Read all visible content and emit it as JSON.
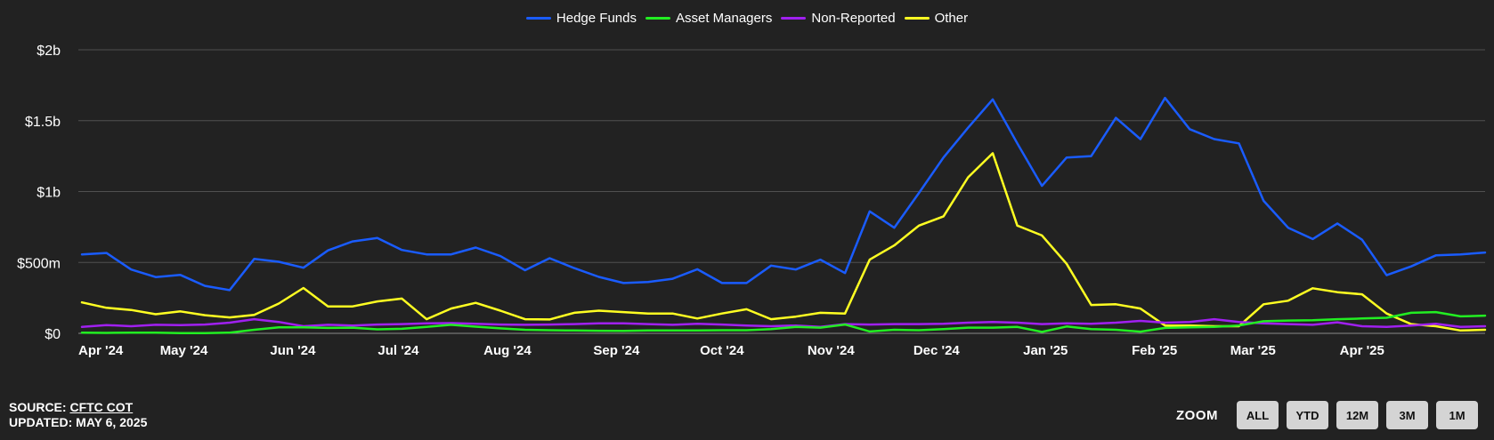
{
  "footer": {
    "source_label": "SOURCE:",
    "source_link": "CFTC COT",
    "updated": "UPDATED: MAY 6, 2025"
  },
  "zoom": {
    "label": "ZOOM",
    "buttons": [
      "ALL",
      "YTD",
      "12M",
      "3M",
      "1M"
    ]
  },
  "chart_data": {
    "type": "line",
    "title": "",
    "xlabel": "",
    "ylabel": "",
    "ylim": [
      0,
      2000000000
    ],
    "y_ticks": [
      {
        "value": 0,
        "label": "$0"
      },
      {
        "value": 500000000,
        "label": "$500m"
      },
      {
        "value": 1000000000,
        "label": "$1b"
      },
      {
        "value": 1500000000,
        "label": "$1.5b"
      },
      {
        "value": 2000000000,
        "label": "$2b"
      }
    ],
    "x_ticks": [
      {
        "date": "2024-04-01",
        "label": "Apr '24"
      },
      {
        "date": "2024-05-01",
        "label": "May '24"
      },
      {
        "date": "2024-06-01",
        "label": "Jun '24"
      },
      {
        "date": "2024-07-01",
        "label": "Jul '24"
      },
      {
        "date": "2024-08-01",
        "label": "Aug '24"
      },
      {
        "date": "2024-09-01",
        "label": "Sep '24"
      },
      {
        "date": "2024-10-01",
        "label": "Oct '24"
      },
      {
        "date": "2024-11-01",
        "label": "Nov '24"
      },
      {
        "date": "2024-12-01",
        "label": "Dec '24"
      },
      {
        "date": "2025-01-01",
        "label": "Jan '25"
      },
      {
        "date": "2025-02-01",
        "label": "Feb '25"
      },
      {
        "date": "2025-03-01",
        "label": "Mar '25"
      },
      {
        "date": "2025-04-01",
        "label": "Apr '25"
      }
    ],
    "x_range": [
      "2024-04-01",
      "2025-05-06"
    ],
    "grid": true,
    "legend_position": "top-center",
    "x": [
      "2024-04-02",
      "2024-04-09",
      "2024-04-16",
      "2024-04-23",
      "2024-04-30",
      "2024-05-07",
      "2024-05-14",
      "2024-05-21",
      "2024-05-28",
      "2024-06-04",
      "2024-06-11",
      "2024-06-18",
      "2024-06-25",
      "2024-07-02",
      "2024-07-09",
      "2024-07-16",
      "2024-07-23",
      "2024-07-30",
      "2024-08-06",
      "2024-08-13",
      "2024-08-20",
      "2024-08-27",
      "2024-09-03",
      "2024-09-10",
      "2024-09-17",
      "2024-09-24",
      "2024-10-01",
      "2024-10-08",
      "2024-10-15",
      "2024-10-22",
      "2024-10-29",
      "2024-11-05",
      "2024-11-12",
      "2024-11-19",
      "2024-11-26",
      "2024-12-03",
      "2024-12-10",
      "2024-12-17",
      "2024-12-24",
      "2024-12-31",
      "2025-01-07",
      "2025-01-14",
      "2025-01-21",
      "2025-01-28",
      "2025-02-04",
      "2025-02-11",
      "2025-02-18",
      "2025-02-25",
      "2025-03-04",
      "2025-03-11",
      "2025-03-18",
      "2025-03-25",
      "2025-04-01",
      "2025-04-08",
      "2025-04-15",
      "2025-04-22",
      "2025-04-29",
      "2025-05-06"
    ],
    "series": [
      {
        "name": "Hedge Funds",
        "color": "#1a5cff",
        "values": [
          557000000,
          567000000,
          450000000,
          397000000,
          412000000,
          335000000,
          305000000,
          525000000,
          505000000,
          463000000,
          585000000,
          648000000,
          673000000,
          588000000,
          557000000,
          557000000,
          605000000,
          545000000,
          445000000,
          530000000,
          460000000,
          398000000,
          355000000,
          362000000,
          385000000,
          452000000,
          355000000,
          355000000,
          478000000,
          450000000,
          520000000,
          425000000,
          860000000,
          745000000,
          990000000,
          1240000000,
          1450000000,
          1650000000,
          1340000000,
          1040000000,
          1240000000,
          1250000000,
          1520000000,
          1370000000,
          1660000000,
          1440000000,
          1370000000,
          1340000000,
          935000000,
          745000000,
          665000000,
          775000000,
          660000000,
          410000000,
          472000000,
          550000000,
          557000000,
          570000000
        ]
      },
      {
        "name": "Asset Managers",
        "color": "#22ee22",
        "values": [
          5000000,
          3000000,
          5000000,
          5000000,
          2000000,
          2000000,
          5000000,
          25000000,
          42000000,
          42000000,
          38000000,
          40000000,
          28000000,
          32000000,
          45000000,
          60000000,
          47000000,
          35000000,
          25000000,
          22000000,
          20000000,
          18000000,
          17000000,
          20000000,
          20000000,
          20000000,
          22000000,
          22000000,
          30000000,
          45000000,
          40000000,
          62000000,
          13000000,
          25000000,
          22000000,
          30000000,
          40000000,
          40000000,
          45000000,
          10000000,
          48000000,
          30000000,
          25000000,
          12000000,
          38000000,
          42000000,
          45000000,
          55000000,
          85000000,
          90000000,
          92000000,
          100000000,
          105000000,
          110000000,
          145000000,
          150000000,
          120000000,
          125000000
        ]
      },
      {
        "name": "Non-Reported",
        "color": "#a020f0",
        "values": [
          45000000,
          58000000,
          50000000,
          60000000,
          58000000,
          62000000,
          75000000,
          100000000,
          80000000,
          50000000,
          60000000,
          55000000,
          62000000,
          65000000,
          70000000,
          72000000,
          68000000,
          62000000,
          60000000,
          62000000,
          65000000,
          70000000,
          70000000,
          65000000,
          60000000,
          68000000,
          62000000,
          55000000,
          50000000,
          55000000,
          45000000,
          65000000,
          62000000,
          65000000,
          65000000,
          68000000,
          75000000,
          80000000,
          75000000,
          65000000,
          70000000,
          68000000,
          75000000,
          88000000,
          75000000,
          80000000,
          100000000,
          80000000,
          70000000,
          65000000,
          60000000,
          78000000,
          50000000,
          45000000,
          55000000,
          68000000,
          45000000,
          50000000
        ]
      },
      {
        "name": "Other",
        "color": "#ffff22",
        "values": [
          218000000,
          180000000,
          165000000,
          135000000,
          155000000,
          128000000,
          112000000,
          130000000,
          210000000,
          320000000,
          190000000,
          190000000,
          225000000,
          245000000,
          100000000,
          175000000,
          215000000,
          160000000,
          100000000,
          98000000,
          145000000,
          160000000,
          150000000,
          140000000,
          140000000,
          105000000,
          140000000,
          170000000,
          100000000,
          118000000,
          145000000,
          140000000,
          520000000,
          620000000,
          760000000,
          825000000,
          1100000000,
          1270000000,
          760000000,
          690000000,
          490000000,
          200000000,
          205000000,
          175000000,
          55000000,
          55000000,
          50000000,
          50000000,
          205000000,
          230000000,
          318000000,
          290000000,
          275000000,
          140000000,
          65000000,
          50000000,
          20000000,
          25000000
        ]
      }
    ]
  }
}
